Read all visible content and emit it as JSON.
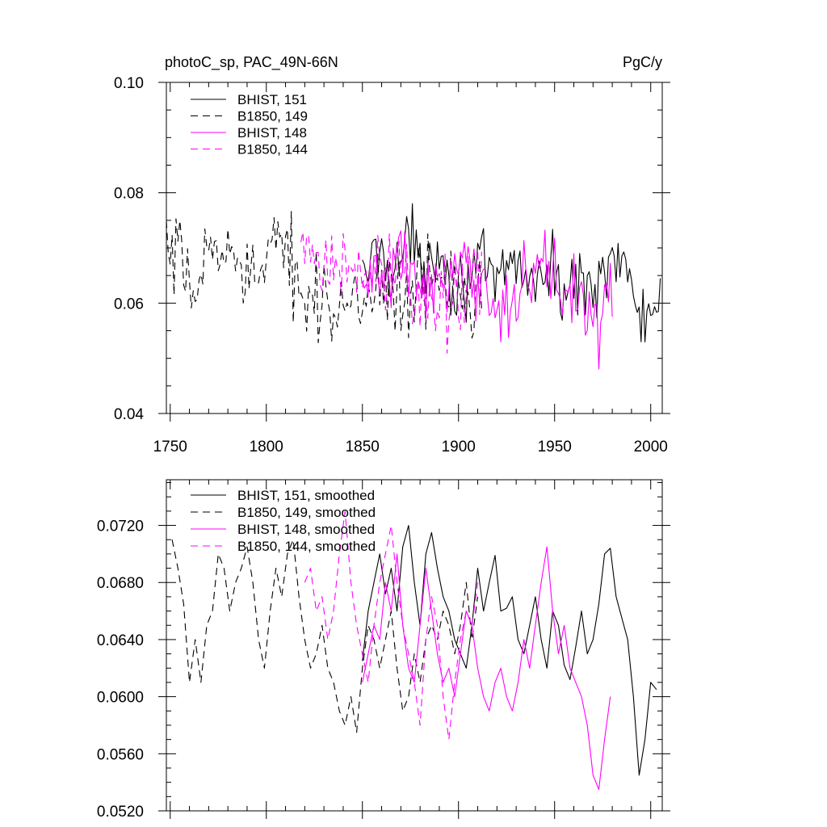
{
  "chart_data": [
    {
      "type": "line",
      "title": "photoC_sp, PAC_49N-66N",
      "units": "PgC/y",
      "xlim": [
        1748,
        2006
      ],
      "ylim": [
        0.04,
        0.1
      ],
      "xticks": [
        1750,
        1800,
        1850,
        1900,
        1950,
        2000
      ],
      "xtick_labels": [
        "1750",
        "1800",
        "1850",
        "1900",
        "1950",
        "2000"
      ],
      "yticks": [
        0.04,
        0.06,
        0.08,
        0.1
      ],
      "ytick_labels": [
        "0.04",
        "0.06",
        "0.08",
        "0.10"
      ],
      "grid": false,
      "legend_position": "top-left",
      "series": [
        {
          "name": "BHIST, 151",
          "color": "#000000",
          "dash": "solid",
          "x_start": 1850,
          "x_end": 2005,
          "anchors_x": [
            1850,
            1855,
            1860,
            1865,
            1870,
            1875,
            1880,
            1885,
            1890,
            1895,
            1900,
            1905,
            1910,
            1915,
            1920,
            1925,
            1930,
            1935,
            1940,
            1945,
            1950,
            1955,
            1960,
            1965,
            1970,
            1975,
            1980,
            1985,
            1990,
            1995,
            2000,
            2005
          ],
          "anchors_y": [
            0.064,
            0.068,
            0.07,
            0.066,
            0.068,
            0.072,
            0.066,
            0.069,
            0.071,
            0.064,
            0.063,
            0.065,
            0.068,
            0.064,
            0.063,
            0.066,
            0.068,
            0.065,
            0.064,
            0.065,
            0.065,
            0.062,
            0.063,
            0.064,
            0.063,
            0.066,
            0.07,
            0.066,
            0.063,
            0.057,
            0.058,
            0.06
          ],
          "amplitude": 0.007
        },
        {
          "name": "B1850, 149",
          "color": "#000000",
          "dash": "dashed",
          "x_start": 1748,
          "x_end": 1912,
          "anchors_x": [
            1748,
            1755,
            1760,
            1765,
            1770,
            1775,
            1780,
            1785,
            1790,
            1795,
            1800,
            1805,
            1810,
            1815,
            1820,
            1825,
            1830,
            1835,
            1840,
            1845,
            1850,
            1855,
            1860,
            1865,
            1870,
            1875,
            1880,
            1885,
            1890,
            1895,
            1900,
            1905,
            1912
          ],
          "anchors_y": [
            0.068,
            0.067,
            0.062,
            0.064,
            0.069,
            0.07,
            0.068,
            0.069,
            0.07,
            0.063,
            0.066,
            0.069,
            0.071,
            0.066,
            0.063,
            0.062,
            0.061,
            0.059,
            0.058,
            0.057,
            0.061,
            0.063,
            0.064,
            0.063,
            0.062,
            0.059,
            0.062,
            0.064,
            0.063,
            0.065,
            0.065,
            0.064,
            0.063
          ],
          "amplitude": 0.009
        },
        {
          "name": "BHIST, 148",
          "color": "#ff00ff",
          "dash": "solid",
          "x_start": 1850,
          "x_end": 1980,
          "anchors_x": [
            1850,
            1855,
            1860,
            1865,
            1870,
            1875,
            1880,
            1885,
            1890,
            1895,
            1900,
            1905,
            1910,
            1915,
            1920,
            1925,
            1930,
            1935,
            1940,
            1945,
            1950,
            1955,
            1960,
            1965,
            1970,
            1975,
            1980
          ],
          "anchors_y": [
            0.063,
            0.065,
            0.064,
            0.066,
            0.068,
            0.066,
            0.064,
            0.062,
            0.063,
            0.062,
            0.064,
            0.066,
            0.064,
            0.061,
            0.06,
            0.062,
            0.06,
            0.063,
            0.066,
            0.069,
            0.064,
            0.062,
            0.064,
            0.061,
            0.057,
            0.058,
            0.06
          ],
          "amplitude": 0.008
        },
        {
          "name": "B1850, 144",
          "color": "#ff00ff",
          "dash": "dashed",
          "x_start": 1818,
          "x_end": 1912,
          "anchors_x": [
            1818,
            1825,
            1830,
            1835,
            1840,
            1845,
            1850,
            1855,
            1860,
            1865,
            1870,
            1875,
            1880,
            1885,
            1890,
            1895,
            1900,
            1905,
            1912
          ],
          "anchors_y": [
            0.068,
            0.066,
            0.065,
            0.07,
            0.068,
            0.064,
            0.063,
            0.064,
            0.066,
            0.068,
            0.066,
            0.064,
            0.059,
            0.062,
            0.064,
            0.059,
            0.062,
            0.064,
            0.066
          ],
          "amplitude": 0.009
        }
      ]
    },
    {
      "type": "line",
      "xlim": [
        1748,
        2006
      ],
      "ylim": [
        0.052,
        0.0752
      ],
      "xticks": [
        1750,
        1800,
        1850,
        1900,
        1950,
        2000
      ],
      "yticks": [
        0.052,
        0.056,
        0.06,
        0.064,
        0.068,
        0.072
      ],
      "ytick_labels": [
        "0.0520",
        "0.0560",
        "0.0600",
        "0.0640",
        "0.0680",
        "0.0720"
      ],
      "grid": false,
      "legend_position": "top-left",
      "series": [
        {
          "name": "BHIST, 151, smoothed",
          "color": "#000000",
          "dash": "solid",
          "x": [
            1850,
            1853,
            1856,
            1859,
            1862,
            1865,
            1868,
            1871,
            1874,
            1877,
            1880,
            1883,
            1886,
            1889,
            1892,
            1895,
            1898,
            1901,
            1904,
            1907,
            1910,
            1913,
            1916,
            1919,
            1922,
            1925,
            1928,
            1931,
            1934,
            1937,
            1940,
            1943,
            1946,
            1949,
            1952,
            1955,
            1958,
            1961,
            1964,
            1967,
            1970,
            1973,
            1976,
            1979,
            1982,
            1985,
            1988,
            1991,
            1994,
            1997,
            2000,
            2003
          ],
          "y": [
            0.0625,
            0.066,
            0.068,
            0.07,
            0.0672,
            0.069,
            0.066,
            0.0705,
            0.072,
            0.068,
            0.065,
            0.07,
            0.0715,
            0.069,
            0.067,
            0.066,
            0.064,
            0.063,
            0.062,
            0.065,
            0.069,
            0.066,
            0.068,
            0.0699,
            0.066,
            0.0662,
            0.067,
            0.064,
            0.063,
            0.065,
            0.067,
            0.064,
            0.062,
            0.066,
            0.065,
            0.0622,
            0.0612,
            0.0635,
            0.066,
            0.063,
            0.064,
            0.0665,
            0.07,
            0.0704,
            0.067,
            0.0655,
            0.064,
            0.06,
            0.0545,
            0.057,
            0.061,
            0.0605
          ]
        },
        {
          "name": "B1850, 149, smoothed",
          "color": "#000000",
          "dash": "dashed",
          "x": [
            1751,
            1754,
            1757,
            1760,
            1763,
            1766,
            1769,
            1772,
            1775,
            1778,
            1781,
            1784,
            1787,
            1790,
            1793,
            1796,
            1799,
            1802,
            1805,
            1808,
            1811,
            1814,
            1817,
            1820,
            1823,
            1826,
            1829,
            1832,
            1835,
            1838,
            1841,
            1844,
            1847,
            1850,
            1853,
            1856,
            1859,
            1862,
            1865,
            1868,
            1871,
            1874,
            1877,
            1880,
            1883,
            1886,
            1889,
            1892,
            1895,
            1898,
            1901,
            1904,
            1907,
            1910
          ],
          "y": [
            0.071,
            0.069,
            0.0665,
            0.061,
            0.064,
            0.061,
            0.065,
            0.066,
            0.07,
            0.069,
            0.066,
            0.068,
            0.069,
            0.0705,
            0.068,
            0.064,
            0.062,
            0.066,
            0.069,
            0.067,
            0.07,
            0.071,
            0.067,
            0.064,
            0.062,
            0.063,
            0.065,
            0.062,
            0.061,
            0.059,
            0.058,
            0.06,
            0.0575,
            0.062,
            0.065,
            0.064,
            0.062,
            0.064,
            0.066,
            0.062,
            0.059,
            0.06,
            0.063,
            0.061,
            0.064,
            0.065,
            0.064,
            0.066,
            0.065,
            0.063,
            0.065,
            0.068,
            0.064,
            0.067
          ]
        },
        {
          "name": "BHIST, 148, smoothed",
          "color": "#ff00ff",
          "dash": "solid",
          "x": [
            1850,
            1853,
            1856,
            1859,
            1862,
            1865,
            1868,
            1871,
            1874,
            1877,
            1880,
            1883,
            1886,
            1889,
            1892,
            1895,
            1898,
            1901,
            1904,
            1907,
            1910,
            1913,
            1916,
            1919,
            1922,
            1925,
            1928,
            1931,
            1934,
            1937,
            1940,
            1943,
            1946,
            1949,
            1952,
            1955,
            1958,
            1961,
            1964,
            1967,
            1970,
            1973,
            1976,
            1979
          ],
          "y": [
            0.061,
            0.063,
            0.065,
            0.064,
            0.068,
            0.066,
            0.07,
            0.065,
            0.062,
            0.061,
            0.065,
            0.069,
            0.066,
            0.063,
            0.061,
            0.062,
            0.06,
            0.063,
            0.066,
            0.065,
            0.062,
            0.06,
            0.059,
            0.061,
            0.062,
            0.06,
            0.059,
            0.061,
            0.064,
            0.062,
            0.065,
            0.068,
            0.0705,
            0.066,
            0.063,
            0.065,
            0.062,
            0.061,
            0.06,
            0.058,
            0.0545,
            0.0535,
            0.057,
            0.06
          ]
        },
        {
          "name": "B1850, 144, smoothed",
          "color": "#ff00ff",
          "dash": "dashed",
          "x": [
            1820,
            1823,
            1826,
            1829,
            1832,
            1835,
            1838,
            1841,
            1844,
            1847,
            1850,
            1853,
            1856,
            1859,
            1862,
            1865,
            1868,
            1871,
            1874,
            1877,
            1880,
            1883,
            1886,
            1889,
            1892,
            1895,
            1898,
            1901,
            1904,
            1907,
            1910
          ],
          "y": [
            0.068,
            0.069,
            0.066,
            0.067,
            0.064,
            0.066,
            0.07,
            0.073,
            0.068,
            0.065,
            0.063,
            0.061,
            0.065,
            0.068,
            0.07,
            0.072,
            0.068,
            0.065,
            0.063,
            0.061,
            0.058,
            0.064,
            0.067,
            0.065,
            0.06,
            0.057,
            0.061,
            0.064,
            0.066,
            0.065,
            0.068
          ]
        }
      ]
    }
  ]
}
